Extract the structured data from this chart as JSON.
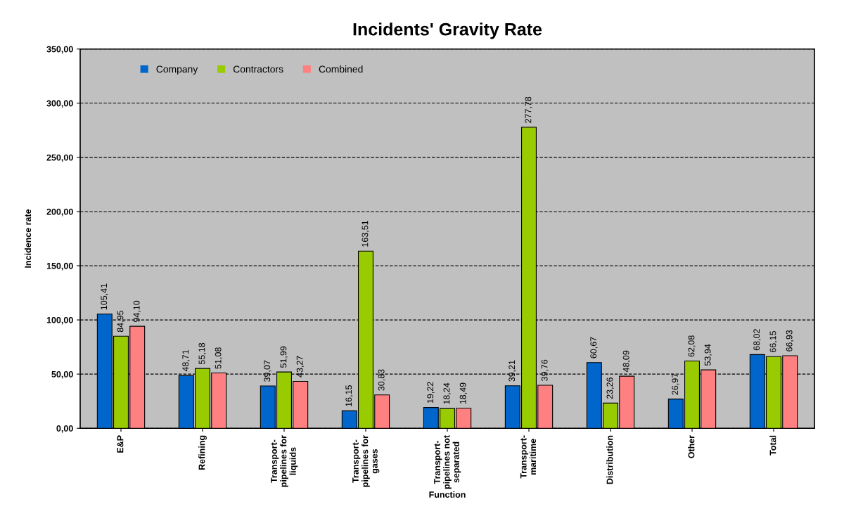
{
  "chart_data": {
    "type": "bar",
    "title": "Incidents' Gravity Rate",
    "xlabel": "Function",
    "ylabel": "Incidence rate",
    "categories": [
      "E&P",
      "Refining",
      "Transport-\npipelines for\nliquids",
      "Transport-\npipelines for\ngases",
      "Transport-\npipelines not\nseparated",
      "Transport-\nmaritime",
      "Distribution",
      "Other",
      "Total"
    ],
    "series": [
      {
        "name": "Company",
        "color": "#0066cc",
        "values": [
          105.41,
          48.71,
          39.07,
          16.15,
          19.22,
          39.21,
          60.67,
          26.97,
          68.02
        ],
        "value_labels": [
          "105,41",
          "48,71",
          "39,07",
          "16,15",
          "19,22",
          "39,21",
          "60,67",
          "26,97",
          "68,02"
        ]
      },
      {
        "name": "Contractors",
        "color": "#99cc00",
        "values": [
          84.95,
          55.18,
          51.99,
          163.51,
          18.24,
          277.78,
          23.26,
          62.08,
          66.15
        ],
        "value_labels": [
          "84,95",
          "55,18",
          "51,99",
          "163,51",
          "18,24",
          "277,78",
          "23,26",
          "62,08",
          "66,15"
        ]
      },
      {
        "name": "Combined",
        "color": "#ff8080",
        "values": [
          94.1,
          51.08,
          43.27,
          30.83,
          18.49,
          39.76,
          48.09,
          53.94,
          66.93
        ],
        "value_labels": [
          "94,10",
          "51,08",
          "43,27",
          "30,83",
          "18,49",
          "39,76",
          "48,09",
          "53,94",
          "66,93"
        ]
      }
    ],
    "ylim": [
      0,
      350
    ],
    "yticks": [
      {
        "value": 0,
        "label": "0,00"
      },
      {
        "value": 50,
        "label": "50,00"
      },
      {
        "value": 100,
        "label": "100,00"
      },
      {
        "value": 150,
        "label": "150,00"
      },
      {
        "value": 200,
        "label": "200,00"
      },
      {
        "value": 250,
        "label": "250,00"
      },
      {
        "value": 300,
        "label": "300,00"
      },
      {
        "value": 350,
        "label": "350,00"
      }
    ],
    "grid": "y",
    "legend": "top left"
  }
}
